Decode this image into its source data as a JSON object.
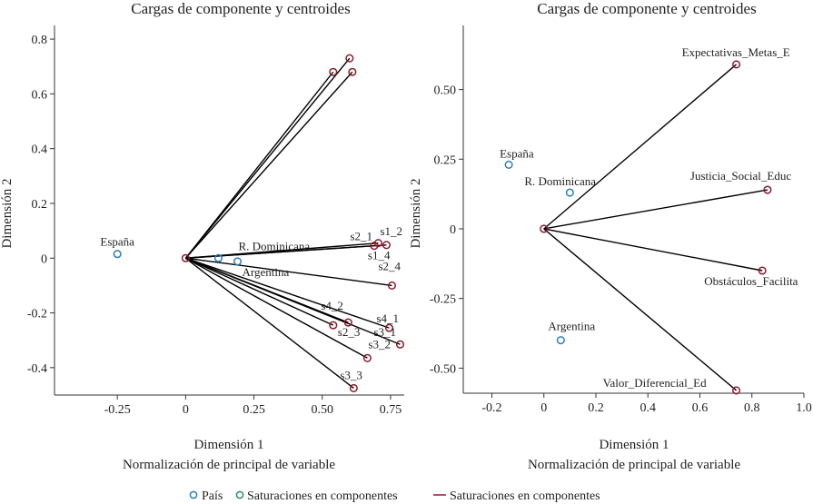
{
  "chart_data": [
    {
      "type": "scatter",
      "title": "Cargas de componente y centroides",
      "xlabel": "Dimensión 1",
      "subtitle": "Normalización de principal de variable",
      "ylabel": "Dimensión 2",
      "xlim": [
        -0.48,
        0.8
      ],
      "ylim": [
        -0.5,
        0.85
      ],
      "xticks": [
        -0.25,
        0,
        0.25,
        0.5,
        0.75
      ],
      "xtick_labels": [
        "-0.25",
        "0",
        "0.25",
        "0.50",
        "0.75"
      ],
      "yticks": [
        0.8,
        0.6,
        0.4,
        0.2,
        0,
        -0.2,
        -0.4
      ],
      "ytick_labels": [
        "0.8",
        "0.6",
        "0.4",
        "0.2",
        "0",
        "-0.2",
        "-0.4"
      ],
      "centroids": [
        {
          "label": "España",
          "x": -0.25,
          "y": 0.015
        },
        {
          "label": "R. Dominicana",
          "x": 0.12,
          "y": 0.0
        },
        {
          "label": "Argentina",
          "x": 0.19,
          "y": -0.012
        }
      ],
      "loadings": [
        {
          "label": "",
          "x": 0.6,
          "y": 0.73
        },
        {
          "label": "",
          "x": 0.54,
          "y": 0.68
        },
        {
          "label": "",
          "x": 0.61,
          "y": 0.68
        },
        {
          "label": "s2_1",
          "x": 0.705,
          "y": 0.055
        },
        {
          "label": "s1_2",
          "x": 0.735,
          "y": 0.048
        },
        {
          "label": "s1_4",
          "x": 0.69,
          "y": 0.045
        },
        {
          "label": "s2_4",
          "x": 0.755,
          "y": -0.1
        },
        {
          "label": "s4_2",
          "x": 0.595,
          "y": -0.235
        },
        {
          "label": "s4_1",
          "x": 0.745,
          "y": -0.255
        },
        {
          "label": "s2_3",
          "x": 0.54,
          "y": -0.245
        },
        {
          "label": "s3_1",
          "x": 0.785,
          "y": -0.315
        },
        {
          "label": "s3_2",
          "x": 0.665,
          "y": -0.365
        },
        {
          "label": "s3_3",
          "x": 0.615,
          "y": -0.475
        }
      ]
    },
    {
      "type": "scatter",
      "title": "Cargas de componente y centroides",
      "xlabel": "Dimensión 1",
      "subtitle": "Normalización de principal de variable",
      "ylabel": "Dimensión 2",
      "xlim": [
        -0.31,
        1.0
      ],
      "ylim": [
        -0.59,
        0.73
      ],
      "xticks": [
        -0.2,
        0,
        0.2,
        0.4,
        0.6,
        0.8,
        1.0
      ],
      "xtick_labels": [
        "-0.2",
        "0",
        "0.2",
        "0.4",
        "0.6",
        "0.8",
        "1.0"
      ],
      "yticks": [
        0.5,
        0.25,
        0,
        -0.25,
        -0.5
      ],
      "ytick_labels": [
        "0.50",
        "0.25",
        "0",
        "-0.25",
        "-0.50"
      ],
      "centroids": [
        {
          "label": "España",
          "x": -0.135,
          "y": 0.23
        },
        {
          "label": "R. Dominicana",
          "x": 0.1,
          "y": 0.13
        },
        {
          "label": "Argentina",
          "x": 0.065,
          "y": -0.4
        }
      ],
      "loadings": [
        {
          "label": "Expectativas_Metas_E",
          "x": 0.74,
          "y": 0.59
        },
        {
          "label": "Justicia_Social_Educ",
          "x": 0.86,
          "y": 0.14
        },
        {
          "label": "Obstáculos_Facilita",
          "x": 0.84,
          "y": -0.15
        },
        {
          "label": "Valor_Diferencial_Ed",
          "x": 0.74,
          "y": -0.58
        }
      ]
    }
  ],
  "legend": [
    {
      "label": "País",
      "color": "#2a7fb5"
    },
    {
      "label": "Saturaciones en componentes",
      "color": "#2e8b6e"
    },
    {
      "label": "Saturaciones en componentes",
      "color": "#8b1a2b"
    }
  ],
  "colors": {
    "centroid": "#2a7fb5",
    "loading": "#8b1a2b",
    "line": "#000000",
    "axis": "#333333"
  }
}
